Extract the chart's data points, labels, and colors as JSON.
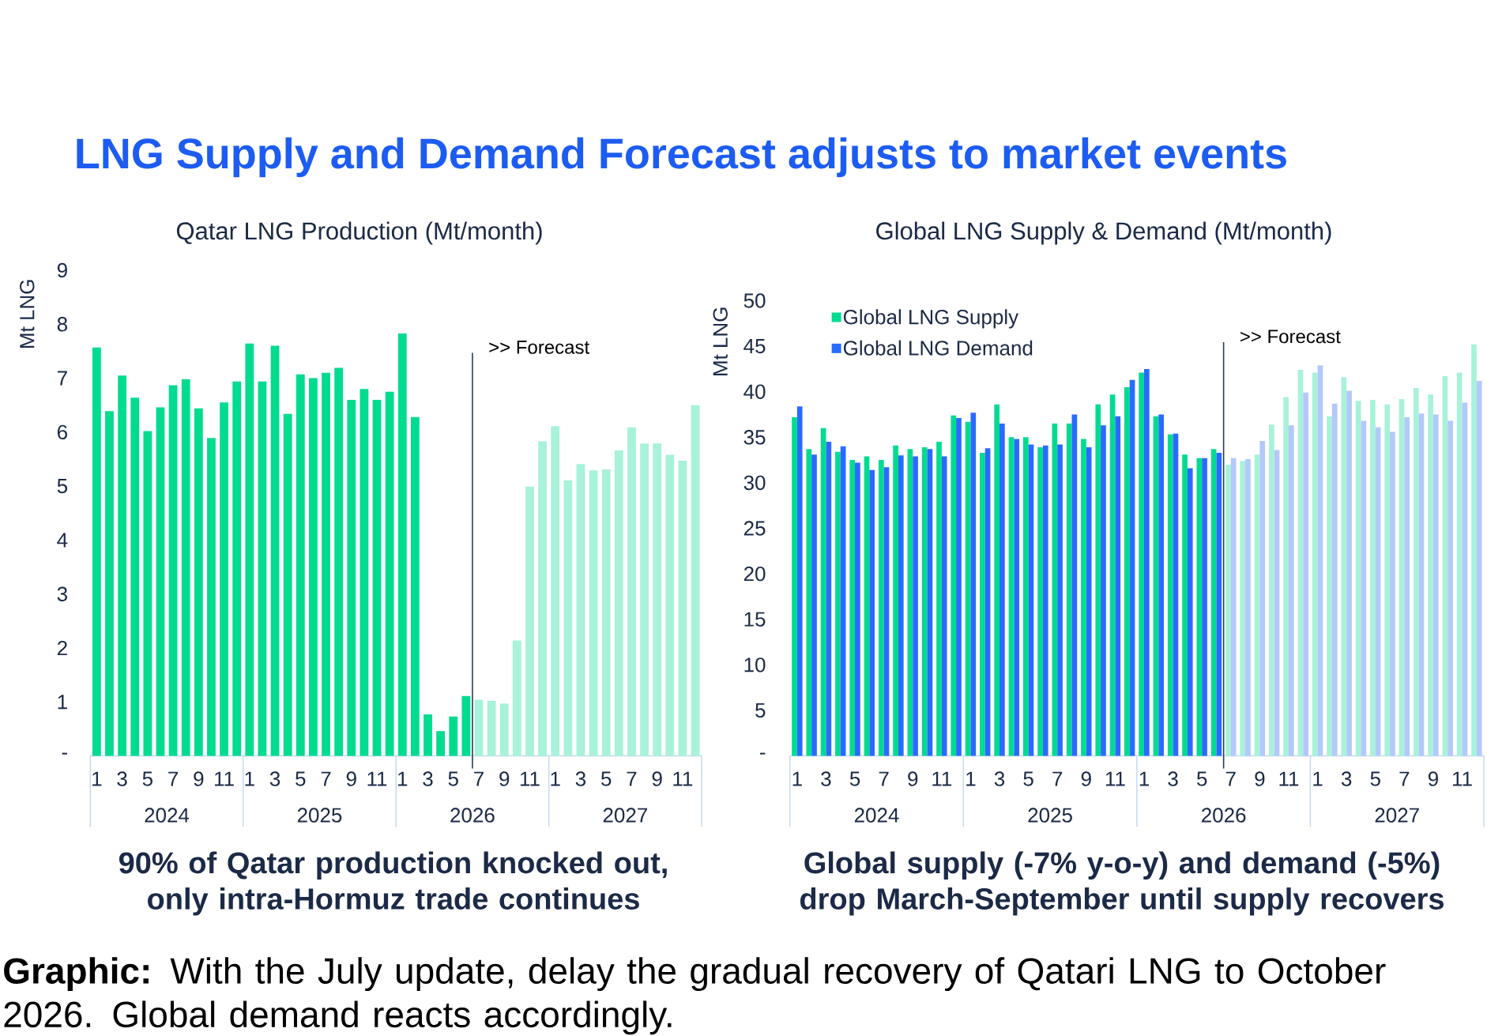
{
  "chart_data": [
    {
      "type": "bar",
      "title": "Qatar LNG Production (Mt/month)",
      "ylabel": "Mt LNG",
      "categories": [
        "1",
        null,
        "3",
        null,
        "5",
        null,
        "7",
        null,
        "9",
        null,
        "11",
        null,
        "1",
        null,
        "3",
        null,
        "5",
        null,
        "7",
        null,
        "9",
        null,
        "11",
        null,
        "1",
        null,
        "3",
        null,
        "5",
        null,
        "7",
        null,
        "9",
        null,
        "11",
        null,
        "1",
        null,
        "3",
        null,
        "5",
        null,
        "7",
        null,
        "9",
        null,
        "11",
        null
      ],
      "values": [
        7.57,
        6.39,
        7.05,
        6.64,
        6.02,
        6.46,
        6.87,
        6.98,
        6.44,
        5.89,
        6.55,
        6.94,
        7.64,
        6.94,
        7.6,
        6.34,
        7.07,
        7.0,
        7.1,
        7.19,
        6.6,
        6.8,
        6.6,
        6.75,
        7.83,
        6.28,
        0.77,
        0.46,
        0.73,
        1.11,
        1.04,
        1.02,
        0.97,
        2.14,
        4.99,
        5.83,
        6.11,
        5.11,
        5.41,
        5.29,
        5.31,
        5.66,
        6.09,
        5.79,
        5.79,
        5.58,
        5.47,
        6.5
      ],
      "colors": [
        "#00dc8f",
        "#00dc8f",
        "#00dc8f",
        "#00dc8f",
        "#00dc8f",
        "#00dc8f",
        "#00dc8f",
        "#00dc8f",
        "#00dc8f",
        "#00dc8f",
        "#00dc8f",
        "#00dc8f",
        "#00dc8f",
        "#00dc8f",
        "#00dc8f",
        "#00dc8f",
        "#00dc8f",
        "#00dc8f",
        "#00dc8f",
        "#00dc8f",
        "#00dc8f",
        "#00dc8f",
        "#00dc8f",
        "#00dc8f",
        "#00dc8f",
        "#00dc8f",
        "#00dc8f",
        "#00dc8f",
        "#00dc8f",
        "#00dc8f",
        "#a8f2d9",
        "#a8f2d9",
        "#a8f2d9",
        "#a8f2d9",
        "#a8f2d9",
        "#a8f2d9",
        "#a8f2d9",
        "#a8f2d9",
        "#a8f2d9",
        "#a8f2d9",
        "#a8f2d9",
        "#a8f2d9",
        "#a8f2d9",
        "#a8f2d9",
        "#a8f2d9",
        "#a8f2d9",
        "#a8f2d9",
        "#a8f2d9"
      ],
      "ylim": [
        0,
        9
      ],
      "yticks": [
        {
          "value": 0,
          "label": "-"
        },
        1,
        2,
        3,
        4,
        5,
        6,
        7,
        8,
        9
      ],
      "annotations": [
        "2024",
        "2025",
        "2026",
        "2027",
        "90% of Qatar production knocked out, only intra-Hormuz trade continues",
        ">> Forecast",
        "LNG Supply and Demand Forecast adjusts to market events",
        "**Graphic:** With the July update, delay the gradual recovery of Qatari LNG to October 2026. Global demand reacts accordingly."
      ]
    },
    {
      "type": "bar",
      "title": "Global LNG Supply & Demand (Mt/month)",
      "ylabel": "Mt LNG",
      "categories": [
        "1",
        null,
        "3",
        null,
        "5",
        null,
        "7",
        null,
        "9",
        null,
        "11",
        null,
        "1",
        null,
        "3",
        null,
        "5",
        null,
        "7",
        null,
        "9",
        null,
        "11",
        null,
        "1",
        null,
        "3",
        null,
        "5",
        null,
        "7",
        null,
        "9",
        null,
        "11",
        null,
        "1",
        null,
        "3",
        null,
        "5",
        null,
        "7",
        null,
        "9",
        null,
        "11",
        null
      ],
      "series": [
        {
          "name": "Global LNG Supply",
          "color": "#00dc8f",
          "values": [
            37.2,
            33.7,
            36.0,
            33.4,
            32.5,
            32.9,
            32.5,
            34.1,
            33.7,
            33.9,
            34.5,
            37.4,
            36.7,
            33.3,
            38.6,
            35.0,
            35.0,
            33.9,
            36.5,
            36.5,
            34.8,
            38.6,
            39.7,
            40.5,
            42.1,
            37.3,
            35.3,
            33.1,
            32.7,
            33.7,
            32.0,
            32.4,
            33.1,
            36.4,
            39.4,
            42.4,
            42.1,
            37.3,
            41.6,
            39.0,
            39.1,
            38.6,
            39.2,
            40.4,
            39.7,
            41.7,
            42.1,
            45.2
          ],
          "colors": [
            "#00dc8f",
            "#00dc8f",
            "#00dc8f",
            "#00dc8f",
            "#00dc8f",
            "#00dc8f",
            "#00dc8f",
            "#00dc8f",
            "#00dc8f",
            "#00dc8f",
            "#00dc8f",
            "#00dc8f",
            "#00dc8f",
            "#00dc8f",
            "#00dc8f",
            "#00dc8f",
            "#00dc8f",
            "#00dc8f",
            "#00dc8f",
            "#00dc8f",
            "#00dc8f",
            "#00dc8f",
            "#00dc8f",
            "#00dc8f",
            "#00dc8f",
            "#00dc8f",
            "#00dc8f",
            "#00dc8f",
            "#00dc8f",
            "#00dc8f",
            "#a8f2d9",
            "#a8f2d9",
            "#a8f2d9",
            "#a8f2d9",
            "#a8f2d9",
            "#a8f2d9",
            "#a8f2d9",
            "#a8f2d9",
            "#a8f2d9",
            "#a8f2d9",
            "#a8f2d9",
            "#a8f2d9",
            "#a8f2d9",
            "#a8f2d9",
            "#a8f2d9",
            "#a8f2d9",
            "#a8f2d9",
            "#a8f2d9"
          ]
        },
        {
          "name": "Global LNG Demand",
          "color": "#2a6bff",
          "values": [
            38.4,
            33.1,
            34.5,
            34.0,
            32.2,
            31.4,
            31.7,
            33.0,
            32.9,
            33.7,
            32.9,
            37.1,
            37.7,
            33.8,
            36.5,
            34.8,
            34.2,
            34.1,
            34.2,
            37.5,
            33.9,
            36.3,
            37.3,
            41.3,
            42.5,
            37.5,
            35.4,
            31.6,
            32.7,
            33.3,
            32.7,
            32.6,
            34.6,
            33.6,
            36.3,
            39.9,
            42.9,
            38.7,
            40.1,
            36.8,
            36.1,
            35.6,
            37.2,
            37.6,
            37.5,
            36.8,
            38.8,
            41.2
          ],
          "colors": [
            "#2a6bff",
            "#2a6bff",
            "#2a6bff",
            "#2a6bff",
            "#2a6bff",
            "#2a6bff",
            "#2a6bff",
            "#2a6bff",
            "#2a6bff",
            "#2a6bff",
            "#2a6bff",
            "#2a6bff",
            "#2a6bff",
            "#2a6bff",
            "#2a6bff",
            "#2a6bff",
            "#2a6bff",
            "#2a6bff",
            "#2a6bff",
            "#2a6bff",
            "#2a6bff",
            "#2a6bff",
            "#2a6bff",
            "#2a6bff",
            "#2a6bff",
            "#2a6bff",
            "#2a6bff",
            "#2a6bff",
            "#2a6bff",
            "#2a6bff",
            "#b3c9fb",
            "#b3c9fb",
            "#b3c9fb",
            "#b3c9fb",
            "#b3c9fb",
            "#b3c9fb",
            "#b3c9fb",
            "#b3c9fb",
            "#b3c9fb",
            "#b3c9fb",
            "#b3c9fb",
            "#b3c9fb",
            "#b3c9fb",
            "#b3c9fb",
            "#b3c9fb",
            "#b3c9fb",
            "#b3c9fb",
            "#b3c9fb"
          ]
        }
      ],
      "ylim": [
        0,
        50
      ],
      "yticks": [
        {
          "value": 0,
          "label": "-"
        },
        5,
        10,
        15,
        20,
        25,
        30,
        35,
        40,
        45,
        50
      ],
      "legend": "top left",
      "annotations": [
        "2024",
        "2025",
        "2026",
        "2027",
        "Global supply (-7% y-o-y) and demand (-5%) drop March-September until supply recovers",
        ">> Forecast"
      ]
    }
  ]
}
